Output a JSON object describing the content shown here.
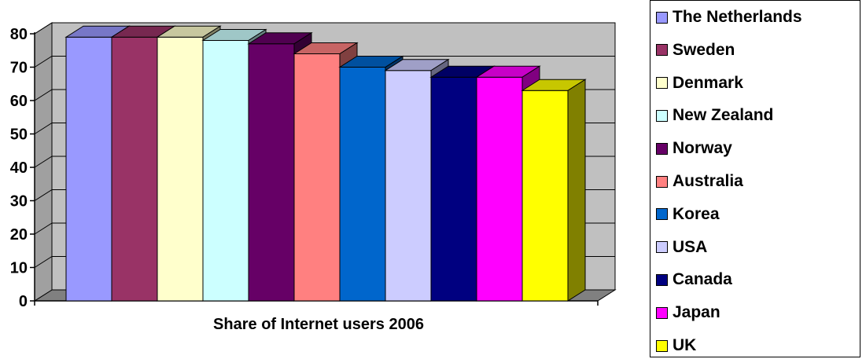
{
  "chart_data": {
    "type": "bar",
    "title": "",
    "xlabel": "Share of Internet users 2006",
    "ylabel": "",
    "ylim": [
      0,
      80
    ],
    "yticks": [
      "0",
      "10",
      "20",
      "30",
      "40",
      "50",
      "60",
      "70",
      "80"
    ],
    "grid": true,
    "legend_position": "right",
    "categories": [
      "The Netherlands",
      "Sweden",
      "Denmark",
      "New Zealand",
      "Norway",
      "Australia",
      "Korea",
      "USA",
      "Canada",
      "Japan",
      "UK"
    ],
    "values": [
      79,
      79,
      79,
      78,
      77,
      74,
      70,
      69,
      67,
      67,
      63
    ],
    "colors": [
      "#9999ff",
      "#993366",
      "#ffffcc",
      "#ccffff",
      "#660066",
      "#ff8080",
      "#0066cc",
      "#ccccff",
      "#000080",
      "#ff00ff",
      "#ffff00"
    ]
  }
}
